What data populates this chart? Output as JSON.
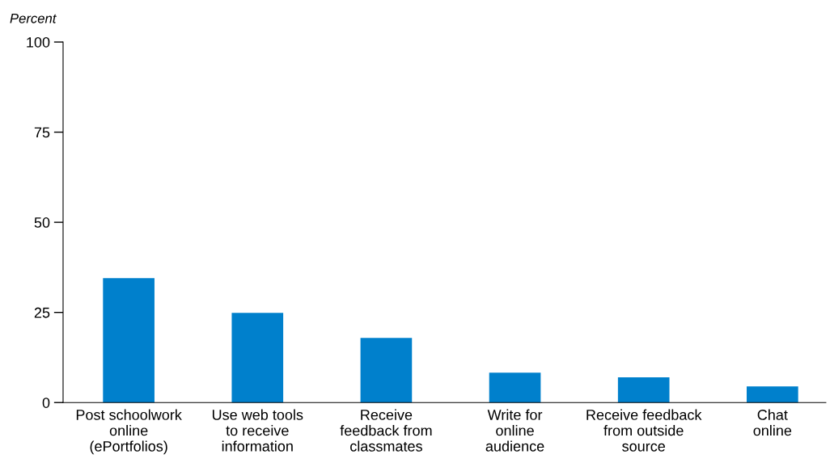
{
  "chart_data": {
    "type": "bar",
    "ylabel": "Percent",
    "categories": [
      "Post schoolwork\nonline\n(ePortfolios)",
      "Use web tools\nto receive\ninformation",
      "Receive\nfeedback from\nclassmates",
      "Write for\nonline\naudience",
      "Receive feedback\nfrom outside\nsource",
      "Chat\nonline"
    ],
    "values": [
      34.5,
      24.9,
      17.9,
      8.3,
      7.0,
      4.5
    ],
    "color": "#0080cc",
    "ylim": [
      0,
      100
    ],
    "yticks": [
      0,
      25,
      50,
      75,
      100
    ],
    "grid": false,
    "legend": false
  }
}
